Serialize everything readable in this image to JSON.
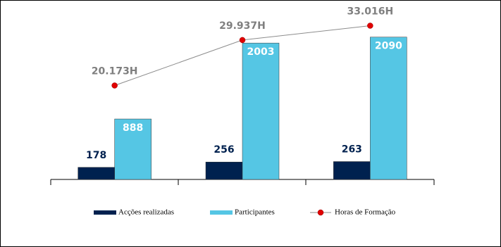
{
  "chart_data": {
    "type": "bar",
    "categories": [
      null,
      null,
      null
    ],
    "series": [
      {
        "name": "Acções realizadas",
        "color": "#00214f",
        "values": [
          178,
          256,
          263
        ]
      },
      {
        "name": "Participantes",
        "color": "#55c6e4",
        "values": [
          888,
          2003,
          2090
        ]
      },
      {
        "name": "Horas de Formação",
        "type": "line",
        "axis": "y2",
        "color": "#e00000",
        "line_color": "#8c8c8c",
        "values": [
          20173,
          29937,
          33016
        ],
        "value_labels": [
          "20.173H",
          "29.937H",
          "33.016H"
        ]
      }
    ],
    "ylim": [
      0,
      2325
    ],
    "y2lim": [
      0,
      34000
    ],
    "legend": "bottom"
  }
}
